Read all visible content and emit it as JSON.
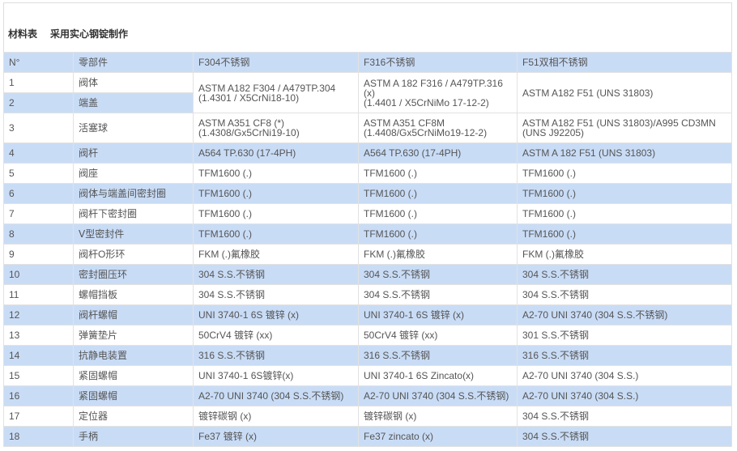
{
  "title": {
    "label": "材料表",
    "subtitle": "采用实心钢锭制作"
  },
  "colors": {
    "stripe": "#c9dcf6",
    "text": "#555555"
  },
  "headers": [
    "N°",
    "零部件",
    "F304不锈钢",
    "F316不锈钢",
    "F51双相不锈钢"
  ],
  "rows": [
    {
      "n": "1",
      "part": "阀体",
      "m": [
        [
          "ASTM A182 F304 / A479TP.304",
          "(1.4301 / X5CrNi18-10)"
        ],
        [
          "ASTM A 182 F316 / A479TP.316",
          "(x)",
          "(1.4401 / X5CrNiMo 17-12-2)"
        ],
        [
          "ASTM A182 F51 (UNS 31803)"
        ]
      ]
    },
    {
      "n": "2",
      "part": "端盖"
    },
    {
      "n": "3",
      "part": "活塞球",
      "m": [
        [
          "ASTM A351 CF8 (*)",
          "(1.4308/Gx5CrNi19-10)"
        ],
        [
          "ASTM A351 CF8M",
          "(1.4408/Gx5CrNiMo19-12-2)"
        ],
        [
          "ASTM A182 F51 (UNS 31803)/A995 CD3MN",
          "(UNS J92205)"
        ]
      ]
    },
    {
      "n": "4",
      "part": "阀杆",
      "m": [
        [
          "A564 TP.630 (17-4PH)"
        ],
        [
          "A564 TP.630 (17-4PH)"
        ],
        [
          "ASTM A 182 F51 (UNS 31803)"
        ]
      ]
    },
    {
      "n": "5",
      "part": "阀座",
      "m": [
        [
          "TFM1600 (.)"
        ],
        [
          "TFM1600 (.)"
        ],
        [
          "TFM1600 (.)"
        ]
      ]
    },
    {
      "n": "6",
      "part": "阀体与端盖间密封圈",
      "m": [
        [
          "TFM1600 (.)"
        ],
        [
          "TFM1600 (.)"
        ],
        [
          "TFM1600 (.)"
        ]
      ]
    },
    {
      "n": "7",
      "part": "阀杆下密封圈",
      "m": [
        [
          "TFM1600 (.)"
        ],
        [
          "TFM1600 (.)"
        ],
        [
          "TFM1600 (.)"
        ]
      ]
    },
    {
      "n": "8",
      "part": "Ⅴ型密封件",
      "m": [
        [
          "TFM1600 (.)"
        ],
        [
          "TFM1600 (.)"
        ],
        [
          "TFM1600 (.)"
        ]
      ]
    },
    {
      "n": "9",
      "part": "阀杆O形环",
      "m": [
        [
          "FKM (.)氟橡胶"
        ],
        [
          "FKM (.)氟橡胶"
        ],
        [
          "FKM (.)氟橡胶"
        ]
      ]
    },
    {
      "n": "10",
      "part": "密封圈压环",
      "m": [
        [
          "304 S.S.不锈钢"
        ],
        [
          "304 S.S.不锈钢"
        ],
        [
          "304 S.S.不锈钢"
        ]
      ]
    },
    {
      "n": "11",
      "part": "螺帽挡板",
      "m": [
        [
          "304 S.S.不锈钢"
        ],
        [
          "304 S.S.不锈钢"
        ],
        [
          "304 S.S.不锈钢"
        ]
      ]
    },
    {
      "n": "12",
      "part": "阀杆螺帽",
      "m": [
        [
          "UNI 3740-1 6S 镀锌 (x)"
        ],
        [
          "UNI 3740-1 6S 镀锌 (x)"
        ],
        [
          "A2-70 UNI 3740 (304 S.S.不锈钢)"
        ]
      ]
    },
    {
      "n": "13",
      "part": "弹簧垫片",
      "m": [
        [
          "50CrV4 镀锌 (xx)"
        ],
        [
          "50CrV4 镀锌 (xx)"
        ],
        [
          "301 S.S.不锈钢"
        ]
      ]
    },
    {
      "n": "14",
      "part": "抗静电装置",
      "m": [
        [
          "316 S.S.不锈钢"
        ],
        [
          "316 S.S.不锈钢"
        ],
        [
          "316 S.S.不锈钢"
        ]
      ]
    },
    {
      "n": "15",
      "part": "紧固螺帽",
      "m": [
        [
          "UNI 3740-1 6S镀锌(x)"
        ],
        [
          "UNI 3740-1 6S Zincato(x)"
        ],
        [
          "A2-70 UNI 3740 (304 S.S.)"
        ]
      ]
    },
    {
      "n": "16",
      "part": "紧固螺帽",
      "m": [
        [
          "A2-70 UNI 3740 (304 S.S.不锈钢)"
        ],
        [
          "A2-70 UNI 3740 (304 S.S.不锈钢)"
        ],
        [
          "A2-70 UNI 3740 (304 S.S.)"
        ]
      ]
    },
    {
      "n": "17",
      "part": "定位器",
      "m": [
        [
          "镀锌碳钢 (x)"
        ],
        [
          "镀锌碳钢 (x)"
        ],
        [
          "304 S.S.不锈钢"
        ]
      ]
    },
    {
      "n": "18",
      "part": "手柄",
      "m": [
        [
          "Fe37 镀锌 (x)"
        ],
        [
          "Fe37 zincato (x)"
        ],
        [
          "304 S.S.不锈钢"
        ]
      ]
    }
  ]
}
